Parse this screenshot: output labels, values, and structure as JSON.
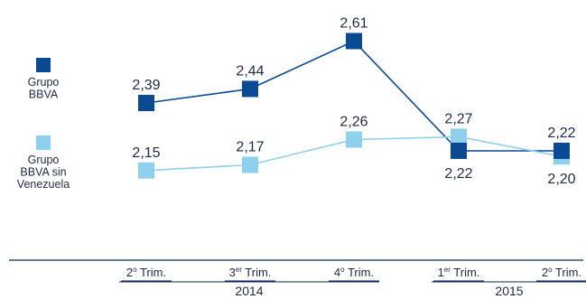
{
  "chart_data": {
    "type": "line",
    "title": "",
    "xlabel": "",
    "ylabel": "",
    "grid": false,
    "legend_position": "left",
    "categories": [
      {
        "base": "2",
        "sup": "o",
        "rest": " Trim."
      },
      {
        "base": "3",
        "sup": "er",
        "rest": " Trim."
      },
      {
        "base": "4",
        "sup": "o",
        "rest": " Trim."
      },
      {
        "base": "1",
        "sup": "er",
        "rest": " Trim."
      },
      {
        "base": "2",
        "sup": "o",
        "rest": " Trim."
      }
    ],
    "years": [
      {
        "label": "2014",
        "from": 0,
        "to": 2
      },
      {
        "label": "2015",
        "from": 3,
        "to": 4
      }
    ],
    "series": [
      {
        "name": "Grupo BBVA",
        "legend_lines": [
          "Grupo",
          "BBVA"
        ],
        "color": "#0a4a93",
        "values": [
          2.39,
          2.44,
          2.61,
          2.22,
          2.22
        ],
        "labels": [
          "2,39",
          "2,44",
          "2,61",
          "2,22",
          "2,22"
        ],
        "label_pos": [
          "above",
          "above",
          "above",
          "below",
          "above"
        ]
      },
      {
        "name": "Grupo BBVA sin Venezuela",
        "legend_lines": [
          "Grupo",
          "BBVA sin",
          "Venezuela"
        ],
        "color": "#8fd0ee",
        "values": [
          2.15,
          2.17,
          2.26,
          2.27,
          2.2
        ],
        "labels": [
          "2,15",
          "2,17",
          "2,26",
          "2,27",
          "2,20"
        ],
        "label_pos": [
          "above",
          "above",
          "above",
          "above",
          "below"
        ]
      }
    ]
  }
}
